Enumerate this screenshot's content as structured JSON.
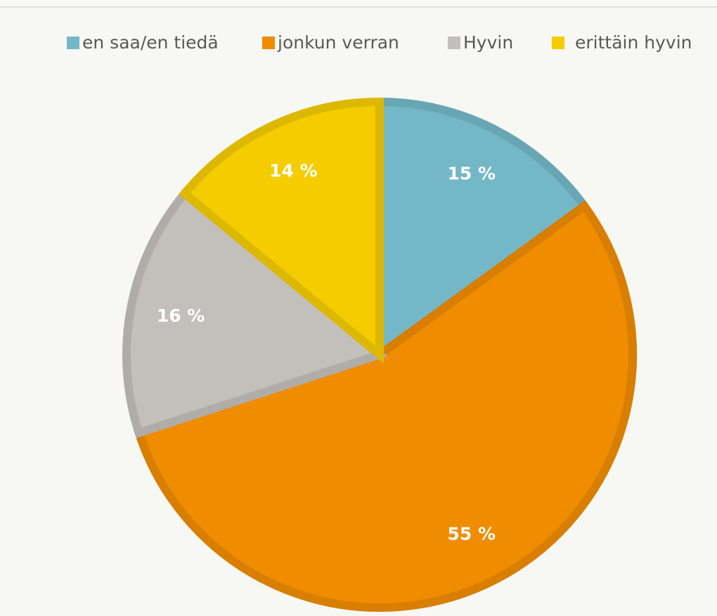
{
  "chart_data": {
    "type": "pie",
    "categories": [
      "en saa/en tiedä",
      "jonkun verran",
      "Hyvin",
      "erittäin hyvin"
    ],
    "values": [
      15,
      55,
      16,
      14
    ],
    "value_labels": [
      "15 %",
      "55 %",
      "16 %",
      "14 %"
    ],
    "colors": [
      "#74b8c8",
      "#f08c00",
      "#c3c0bc",
      "#f5cc00"
    ],
    "legend": "top"
  }
}
